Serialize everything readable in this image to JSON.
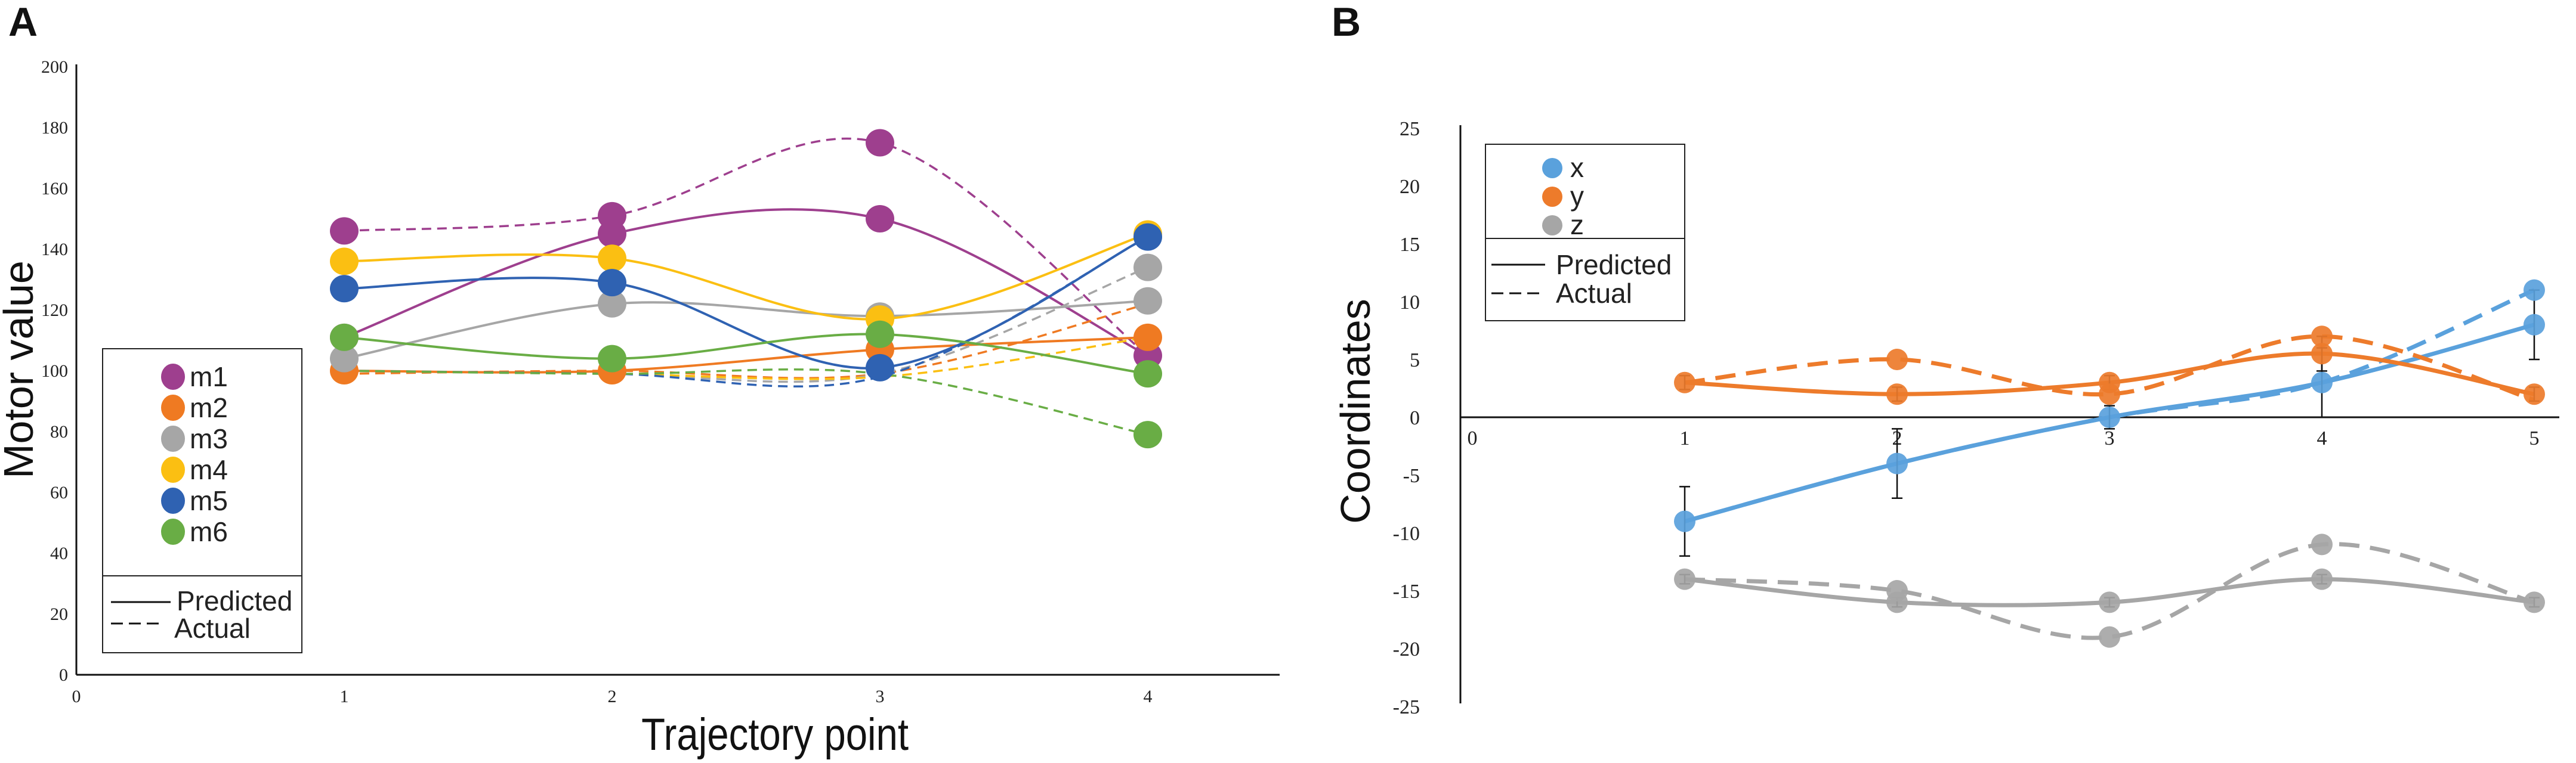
{
  "chart_data": [
    {
      "panel": "A",
      "type": "line",
      "xlabel": "Trajectory point",
      "ylabel": "Motor value",
      "xlim": [
        0,
        4.5
      ],
      "ylim": [
        0,
        200
      ],
      "x_ticks": [
        0,
        1,
        2,
        3,
        4
      ],
      "y_ticks": [
        0,
        20,
        40,
        60,
        80,
        100,
        120,
        140,
        160,
        180,
        200
      ],
      "legend_title_lines": [
        "Predicted",
        "Actual"
      ],
      "series": [
        {
          "name": "m1",
          "color": "#9e3f8e",
          "x": [
            1,
            2,
            3,
            4
          ],
          "predicted": [
            111,
            145,
            150,
            105
          ],
          "actual": [
            146,
            151,
            175,
            105
          ]
        },
        {
          "name": "m2",
          "color": "#ef7a22",
          "x": [
            1,
            2,
            3,
            4
          ],
          "predicted": [
            100,
            100,
            107,
            111
          ],
          "actual": [
            99,
            100,
            99,
            122
          ]
        },
        {
          "name": "m3",
          "color": "#a6a6a6",
          "x": [
            1,
            2,
            3,
            4
          ],
          "predicted": [
            104,
            122,
            118,
            123
          ],
          "actual": [
            100,
            99,
            99,
            134
          ]
        },
        {
          "name": "m4",
          "color": "#fbbf12",
          "x": [
            1,
            2,
            3,
            4
          ],
          "predicted": [
            136,
            137,
            117,
            145
          ],
          "actual": [
            100,
            99,
            98,
            111
          ]
        },
        {
          "name": "m5",
          "color": "#2f62b2",
          "x": [
            1,
            2,
            3,
            4
          ],
          "predicted": [
            127,
            129,
            101,
            144
          ],
          "actual": [
            100,
            99,
            98,
            144
          ]
        },
        {
          "name": "m6",
          "color": "#69ad45",
          "x": [
            1,
            2,
            3,
            4
          ],
          "predicted": [
            111,
            104,
            112,
            99
          ],
          "actual": [
            100,
            99,
            99,
            79
          ]
        }
      ]
    },
    {
      "panel": "B",
      "type": "line",
      "xlabel": "",
      "ylabel": "Coordinates",
      "xlim": [
        0,
        5
      ],
      "ylim": [
        -25,
        25
      ],
      "x_ticks": [
        0,
        1,
        2,
        3,
        4,
        5
      ],
      "y_ticks": [
        25,
        20,
        15,
        10,
        5,
        0,
        -5,
        -10,
        -15,
        -20,
        -25
      ],
      "legend_title_lines": [
        "Predicted",
        "Actual"
      ],
      "series": [
        {
          "name": "x",
          "color": "#5aa1dc",
          "x": [
            1,
            2,
            3,
            4,
            5
          ],
          "predicted": [
            -9,
            -4,
            0,
            3,
            8
          ],
          "actual": [
            -9,
            -4,
            0,
            3,
            11
          ],
          "error": [
            3,
            3,
            1,
            3,
            3
          ]
        },
        {
          "name": "y",
          "color": "#ed7b2b",
          "x": [
            1,
            2,
            3,
            4,
            5
          ],
          "predicted": [
            3,
            2,
            3,
            5.5,
            2
          ],
          "actual": [
            3,
            5,
            2,
            7,
            1.5
          ],
          "error": [
            0.6,
            0.6,
            0.6,
            1.5,
            0.6
          ]
        },
        {
          "name": "z",
          "color": "#a6a6a6",
          "x": [
            1,
            2,
            3,
            4,
            5
          ],
          "predicted": [
            -14,
            -16,
            -16,
            -14,
            -16
          ],
          "actual": [
            -14,
            -15,
            -19,
            -11,
            -16
          ],
          "error": [
            0.4,
            0.4,
            0.4,
            0.4,
            0.4
          ]
        }
      ]
    }
  ],
  "panels": {
    "a_label": "A",
    "b_label": "B"
  }
}
